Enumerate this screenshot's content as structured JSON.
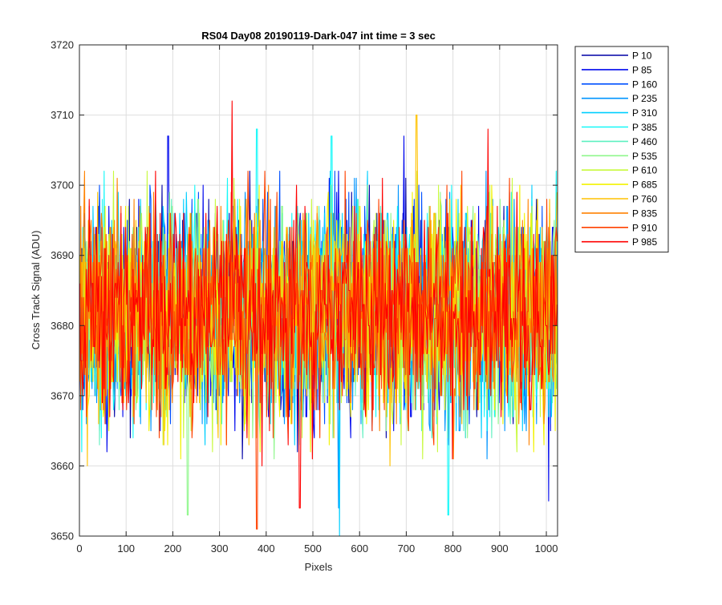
{
  "figure_background": "#ffffff",
  "chart_data": {
    "type": "line",
    "title": "RS04 Day08 20190119-Dark-047 int time = 3 sec",
    "xlabel": "Pixels",
    "ylabel": "Cross Track Signal (ADU)",
    "xlim": [
      0,
      1024
    ],
    "ylim": [
      3650,
      3720
    ],
    "xticks": [
      0,
      100,
      200,
      300,
      400,
      500,
      600,
      700,
      800,
      900,
      1000
    ],
    "yticks": [
      3650,
      3660,
      3670,
      3680,
      3690,
      3700,
      3710,
      3720
    ],
    "grid": true,
    "legend_placement": "outside-top-right",
    "series_mean": 3682,
    "series_noise_sd": 7.5,
    "series": [
      {
        "name": "P 10",
        "color": "#0000a5"
      },
      {
        "name": "P 85",
        "color": "#0008ee"
      },
      {
        "name": "P 160",
        "color": "#0050ff"
      },
      {
        "name": "P 235",
        "color": "#0094ff"
      },
      {
        "name": "P 310",
        "color": "#00cfff"
      },
      {
        "name": "P 385",
        "color": "#14f8f8"
      },
      {
        "name": "P 460",
        "color": "#5ef0c0"
      },
      {
        "name": "P 535",
        "color": "#8ff78c"
      },
      {
        "name": "P 610",
        "color": "#c8fa3c"
      },
      {
        "name": "P 685",
        "color": "#f2f200"
      },
      {
        "name": "P 760",
        "color": "#ffc200"
      },
      {
        "name": "P 835",
        "color": "#ff8200"
      },
      {
        "name": "P 910",
        "color": "#ff4100"
      },
      {
        "name": "P 985",
        "color": "#ff0000"
      }
    ],
    "peaks": [
      {
        "series": "P 985",
        "x": 327,
        "y": 3712
      },
      {
        "series": "P 760",
        "x": 722,
        "y": 3710
      },
      {
        "series": "P 985",
        "x": 875,
        "y": 3708
      },
      {
        "series": "P 385",
        "x": 380,
        "y": 3708
      },
      {
        "series": "P 85",
        "x": 190,
        "y": 3707
      },
      {
        "series": "P 385",
        "x": 540,
        "y": 3707
      },
      {
        "series": "P 85",
        "x": 695,
        "y": 3707
      },
      {
        "series": "P 910",
        "x": 380,
        "y": 3651
      },
      {
        "series": "P 310",
        "x": 557,
        "y": 3650
      },
      {
        "series": "P 235",
        "x": 555,
        "y": 3654
      },
      {
        "series": "P 985",
        "x": 472,
        "y": 3654
      },
      {
        "series": "P 385",
        "x": 790,
        "y": 3653
      },
      {
        "series": "P 535",
        "x": 232,
        "y": 3653
      },
      {
        "series": "P 85",
        "x": 1005,
        "y": 3655
      }
    ]
  }
}
